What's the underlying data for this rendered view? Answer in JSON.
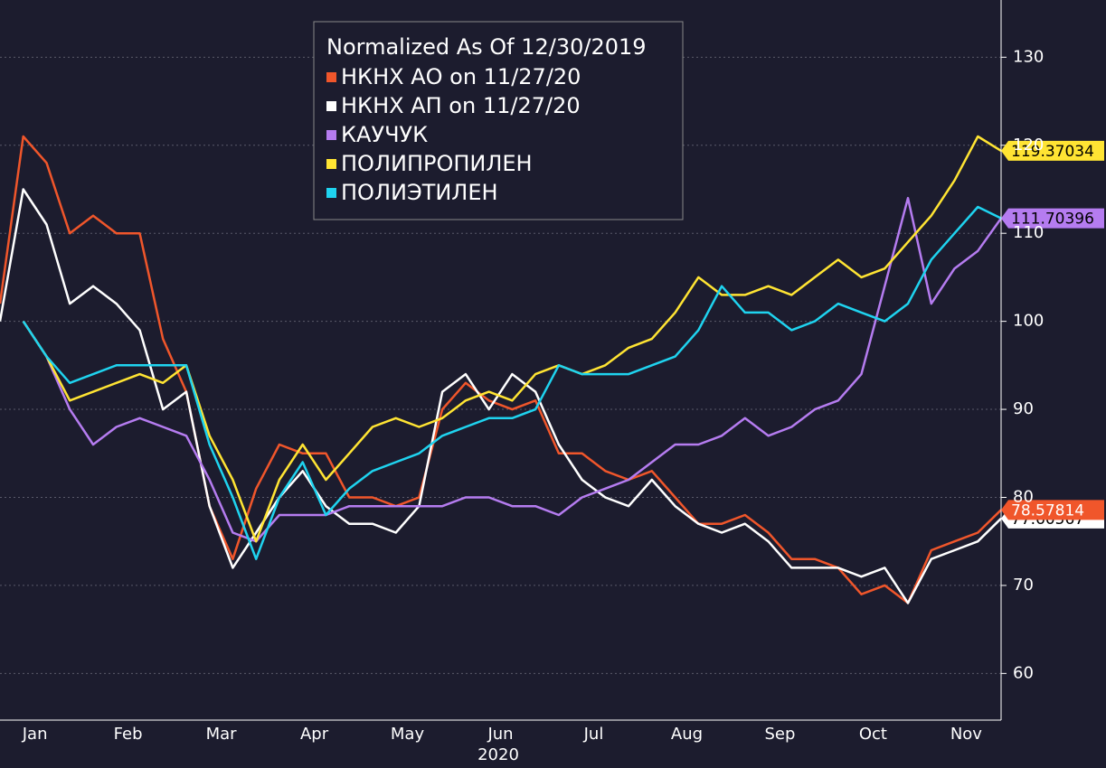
{
  "chart_data": {
    "type": "line",
    "legend_title": "Normalized As Of 12/30/2019",
    "xlabel": "2020",
    "categories": [
      null,
      "Jan",
      null,
      null,
      null,
      "Feb",
      null,
      null,
      null,
      "Mar",
      null,
      null,
      null,
      "Apr",
      null,
      null,
      null,
      "May",
      null,
      null,
      null,
      "Jun",
      null,
      null,
      null,
      "Jul",
      null,
      null,
      null,
      "Aug",
      null,
      null,
      null,
      "Sep",
      null,
      null,
      null,
      "Oct",
      null,
      null,
      null,
      "Nov",
      null,
      null
    ],
    "series": [
      {
        "name": "НКНХ АО on 11/27/20",
        "color": "#f0562b",
        "values": [
          102,
          121,
          118,
          110,
          112,
          110,
          110,
          98,
          92,
          79,
          73,
          81,
          86,
          85,
          85,
          80,
          80,
          79,
          80,
          90,
          93,
          91,
          90,
          91,
          85,
          85,
          83,
          82,
          83,
          80,
          77,
          77,
          78,
          76,
          73,
          73,
          72,
          69,
          70,
          68,
          74,
          75,
          76,
          78.57814
        ]
      },
      {
        "name": "НКНХ АП on 11/27/20",
        "color": "#ffffff",
        "values": [
          100,
          115,
          111,
          102,
          104,
          102,
          99,
          90,
          92,
          79,
          72,
          76,
          80,
          83,
          79,
          77,
          77,
          76,
          79,
          92,
          94,
          90,
          94,
          92,
          86,
          82,
          80,
          79,
          82,
          79,
          77,
          76,
          77,
          75,
          72,
          72,
          72,
          71,
          72,
          68,
          73,
          74,
          75,
          77.60567
        ]
      },
      {
        "name": "КАУЧУК",
        "color": "#b57cf0",
        "values": [
          null,
          100,
          96,
          90,
          86,
          88,
          89,
          88,
          87,
          82,
          76,
          75,
          78,
          78,
          78,
          79,
          79,
          79,
          79,
          79,
          80,
          80,
          79,
          79,
          78,
          80,
          81,
          82,
          84,
          86,
          86,
          87,
          89,
          87,
          88,
          90,
          91,
          94,
          104,
          114,
          102,
          106,
          108,
          111.70396
        ]
      },
      {
        "name": "ПОЛИПРОПИЛЕН",
        "color": "#ffe433",
        "values": [
          null,
          100,
          96,
          91,
          92,
          93,
          94,
          93,
          95,
          87,
          82,
          75,
          82,
          86,
          82,
          85,
          88,
          89,
          88,
          89,
          91,
          92,
          91,
          94,
          95,
          94,
          95,
          97,
          98,
          101,
          105,
          103,
          103,
          104,
          103,
          105,
          107,
          105,
          106,
          109,
          112,
          116,
          121,
          119.37034
        ]
      },
      {
        "name": "ПОЛИЭТИЛЕН",
        "color": "#1fd3ef",
        "values": [
          null,
          100,
          96,
          93,
          94,
          95,
          95,
          95,
          95,
          86,
          80,
          73,
          80,
          84,
          78,
          81,
          83,
          84,
          85,
          87,
          88,
          89,
          89,
          90,
          95,
          94,
          94,
          94,
          95,
          96,
          99,
          104,
          101,
          101,
          99,
          100,
          102,
          101,
          100,
          102,
          107,
          110,
          113,
          111.7
        ]
      }
    ],
    "ylim": [
      54.7,
      136.5
    ],
    "yticks": [
      60,
      70,
      80,
      90,
      100,
      110,
      120,
      130
    ],
    "grid": true
  }
}
